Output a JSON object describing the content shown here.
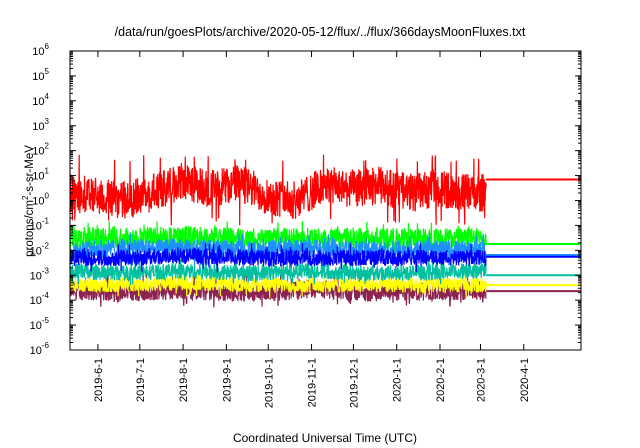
{
  "chart_data": {
    "type": "line",
    "title": "/data/run/goesPlots/archive/2020-05-12/flux/../flux/366daysMoonFluxes.txt",
    "xlabel": "Coordinated Universal Time (UTC)",
    "ylabel": "protons/cm²-s-sr-MeV",
    "ylabel_parts": {
      "before": "protons/cm",
      "sup": "2",
      "after": "-s-sr-MeV"
    },
    "y_scale": "log",
    "ylim": [
      1e-06,
      1000000.0
    ],
    "xlim": [
      "2019-05-12",
      "2020-05-12"
    ],
    "x_ticks": [
      "2019-6-1",
      "2019-7-1",
      "2019-8-1",
      "2019-9-1",
      "2019-10-1",
      "2019-11-1",
      "2019-12-1",
      "2020-1-1",
      "2020-2-1",
      "2020-3-1",
      "2020-4-1"
    ],
    "y_ticks": [
      {
        "value": 1e-06,
        "base": "10",
        "exp": "-6"
      },
      {
        "value": 1e-05,
        "base": "10",
        "exp": "-5"
      },
      {
        "value": 0.0001,
        "base": "10",
        "exp": "-4"
      },
      {
        "value": 0.001,
        "base": "10",
        "exp": "-3"
      },
      {
        "value": 0.01,
        "base": "10",
        "exp": "-2"
      },
      {
        "value": 0.1,
        "base": "10",
        "exp": "-1"
      },
      {
        "value": 1,
        "base": "10",
        "exp": "0"
      },
      {
        "value": 10,
        "base": "10",
        "exp": "1"
      },
      {
        "value": 100,
        "base": "10",
        "exp": "2"
      },
      {
        "value": 1000,
        "base": "10",
        "exp": "3"
      },
      {
        "value": 10000,
        "base": "10",
        "exp": "4"
      },
      {
        "value": 100000,
        "base": "10",
        "exp": "5"
      },
      {
        "value": 1000000,
        "base": "10",
        "exp": "6"
      }
    ],
    "grid": false,
    "legend": "none",
    "data_end": "2020-03-05",
    "series": [
      {
        "color": "#8b2252",
        "x": [
          "2019-05-12",
          "2019-06-15",
          "2019-08-01",
          "2019-09-15",
          "2019-11-01",
          "2019-12-15",
          "2020-01-25",
          "2020-03-05"
        ],
        "y": [
          0.00025,
          0.0002,
          0.00025,
          0.0002,
          0.00025,
          0.0002,
          0.00022,
          0.00025
        ],
        "band": [
          5e-05,
          0.0012
        ],
        "last": 0.00023
      },
      {
        "color": "#ffff00",
        "x": [
          "2019-05-12",
          "2019-06-15",
          "2019-08-01",
          "2019-09-15",
          "2019-11-01",
          "2019-12-15",
          "2020-01-25",
          "2020-03-05"
        ],
        "y": [
          0.0004,
          0.0004,
          0.0005,
          0.0004,
          0.0004,
          0.0004,
          0.0004,
          0.0004
        ],
        "band": [
          0.00012,
          0.0015
        ],
        "last": 0.0004
      },
      {
        "color": "#00c0a0",
        "x": [
          "2019-05-12",
          "2019-06-15",
          "2019-08-01",
          "2019-09-15",
          "2019-11-01",
          "2019-12-15",
          "2020-01-25",
          "2020-03-05"
        ],
        "y": [
          0.0015,
          0.0012,
          0.0015,
          0.0012,
          0.0015,
          0.0012,
          0.0013,
          0.0015
        ],
        "band": [
          0.0004,
          0.006
        ],
        "last": 0.001
      },
      {
        "color": "#00ff00",
        "x": [
          "2019-05-12",
          "2019-06-15",
          "2019-08-01",
          "2019-09-15",
          "2019-11-01",
          "2019-12-15",
          "2020-01-25",
          "2020-03-05"
        ],
        "y": [
          0.03,
          0.03,
          0.035,
          0.03,
          0.03,
          0.03,
          0.03,
          0.03
        ],
        "band": [
          0.004,
          0.15
        ],
        "last": 0.018
      },
      {
        "color": "#1e90ff",
        "x": [
          "2019-05-12",
          "2019-06-15",
          "2019-08-01",
          "2019-09-15",
          "2019-11-01",
          "2019-12-15",
          "2020-01-25",
          "2020-03-05"
        ],
        "y": [
          0.01,
          0.012,
          0.012,
          0.01,
          0.012,
          0.01,
          0.011,
          0.01
        ],
        "band": [
          0.002,
          0.05
        ],
        "last": 0.0065
      },
      {
        "color": "#0000ff",
        "x": [
          "2019-05-12",
          "2019-06-15",
          "2019-08-01",
          "2019-09-15",
          "2019-11-01",
          "2019-12-15",
          "2020-01-25",
          "2020-03-05"
        ],
        "y": [
          0.005,
          0.005,
          0.006,
          0.005,
          0.005,
          0.005,
          0.005,
          0.005
        ],
        "band": [
          0.0012,
          0.02
        ],
        "last": 0.0055
      },
      {
        "color": "#ff0000",
        "x": [
          "2019-05-12",
          "2019-06-01",
          "2019-06-20",
          "2019-07-10",
          "2019-08-01",
          "2019-08-20",
          "2019-09-10",
          "2019-10-01",
          "2019-10-20",
          "2019-11-10",
          "2019-12-01",
          "2019-12-20",
          "2020-01-10",
          "2020-02-01",
          "2020-02-20",
          "2020-03-05"
        ],
        "y": [
          2,
          1.5,
          1,
          2,
          6,
          3,
          5,
          1.5,
          1,
          4,
          3,
          4,
          2,
          3,
          2,
          2
        ],
        "band": [
          0.1,
          70
        ],
        "last": 7
      }
    ]
  }
}
